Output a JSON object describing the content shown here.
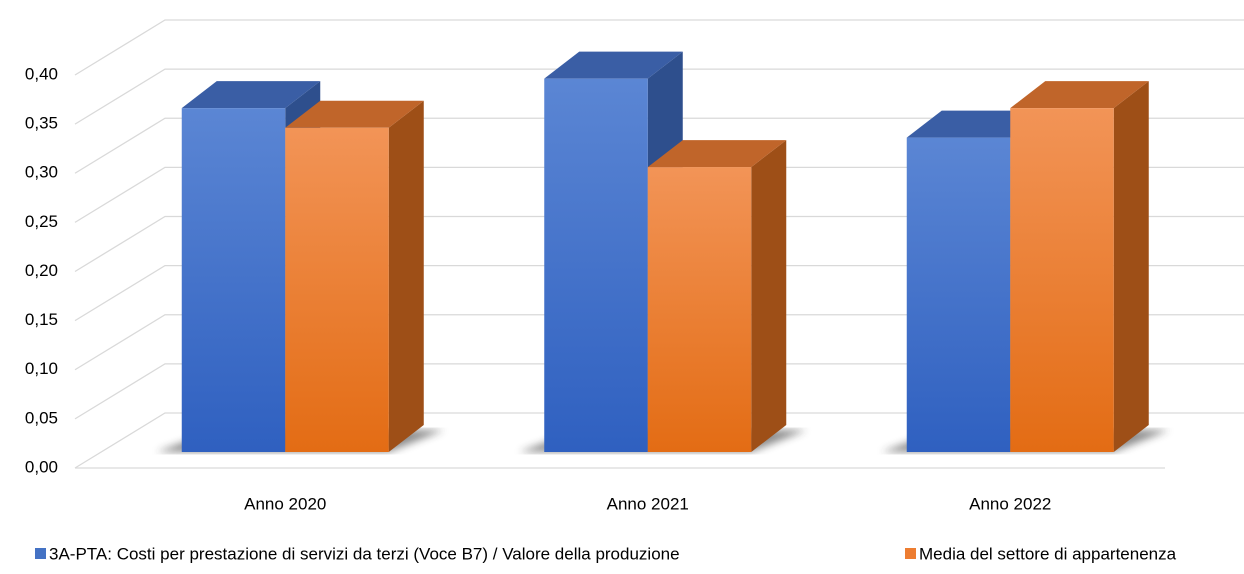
{
  "chart_data": {
    "type": "bar3d",
    "categories": [
      "Anno 2020",
      "Anno 2021",
      "Anno 2022"
    ],
    "series": [
      {
        "name": "3A-PTA: Costi per prestazione di servizi da terzi (Voce B7) / Valore della produzione",
        "color": "#4472c4",
        "values": [
          0.35,
          0.38,
          0.32
        ]
      },
      {
        "name": "Media del settore di appartenenza",
        "color": "#ed7d31",
        "values": [
          0.33,
          0.29,
          0.35
        ]
      }
    ],
    "ylim": [
      0,
      0.4
    ],
    "yticks": [
      {
        "value": 0,
        "label": "0,00"
      },
      {
        "value": 0.05,
        "label": "0,05"
      },
      {
        "value": 0.1,
        "label": "0,10"
      },
      {
        "value": 0.15,
        "label": "0,15"
      },
      {
        "value": 0.2,
        "label": "0,20"
      },
      {
        "value": 0.25,
        "label": "0,25"
      },
      {
        "value": 0.3,
        "label": "0,30"
      },
      {
        "value": 0.35,
        "label": "0,35"
      },
      {
        "value": 0.4,
        "label": "0,40"
      }
    ],
    "grid": true,
    "legend": "bottom"
  }
}
